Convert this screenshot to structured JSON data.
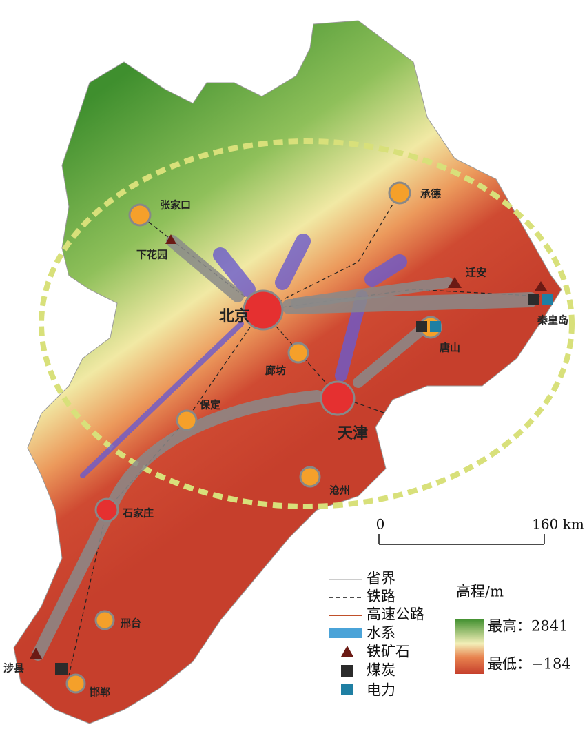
{
  "cities": [
    "北京",
    "天津",
    "石家庄",
    "张家口",
    "承德",
    "唐山",
    "廊坊",
    "保定",
    "沧州",
    "邢台",
    "邯郸",
    "下花园",
    "迁安",
    "秦皇岛",
    "涉县"
  ],
  "scale_bar": {
    "start": "0",
    "end": "160 km"
  },
  "legend": [
    "省界",
    "铁路",
    "高速公路",
    "水系",
    "铁矿石",
    "煤炭",
    "电力"
  ],
  "elevation_legend": {
    "title": "高程/m",
    "max": "最高：2841",
    "min": "最低：−184"
  }
}
